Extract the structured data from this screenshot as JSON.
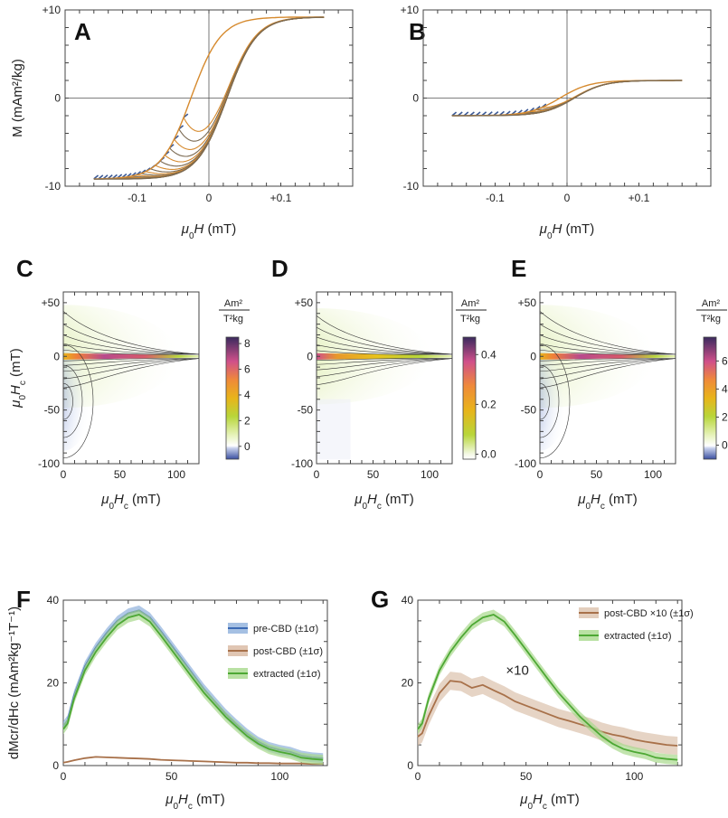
{
  "figure": {
    "panels": {
      "A": "A",
      "B": "B",
      "C": "C",
      "D": "D",
      "E": "E",
      "F": "F",
      "G": "G"
    },
    "hysteresis_x_label": "μ0H (mT)",
    "hysteresis_y_label": "M (mAm²/kg)",
    "forc_x_label": "μ0Hc (mT)",
    "forc_y_label": "μ0Hc (mT)",
    "colorbar_unit_top": "Am²",
    "colorbar_unit_bottom": "T²kg",
    "dist_x_label": "μ0Hc (mT)",
    "dist_y_label": "dMcr/dHc (mAm²kg⁻¹T⁻¹)"
  },
  "chart_data": [
    {
      "id": "A",
      "type": "line",
      "title": "",
      "xlabel": "μ0H (mT)",
      "ylabel": "M (mAm²/kg)",
      "xlim": [
        -0.2,
        0.2
      ],
      "ylim": [
        -10,
        10
      ],
      "xticks": [
        "-0.1",
        "0",
        "+0.1"
      ],
      "yticks": [
        "-10",
        "0",
        "+10"
      ],
      "saturation_M": 9.2,
      "Hmax": 0.16,
      "coercivity_outer": 0.025,
      "num_first_order_curves": 20,
      "colors": {
        "curves": "#7b6a52",
        "ends": "#d68a2e",
        "alt": "#3c5a96"
      }
    },
    {
      "id": "B",
      "type": "line",
      "title": "",
      "xlabel": "μ0H (mT)",
      "ylabel": "",
      "xlim": [
        -0.2,
        0.2
      ],
      "ylim": [
        -10,
        10
      ],
      "xticks": [
        "-0.1",
        "0",
        "+0.1"
      ],
      "yticks": [
        "-10",
        "0",
        "+10"
      ],
      "saturation_M": 2.0,
      "Hmax": 0.16,
      "coercivity_outer": 0.01,
      "num_first_order_curves": 16,
      "colors": {
        "curves": "#7b6a52",
        "ends": "#d68a2e",
        "alt": "#3c5a96"
      }
    },
    {
      "id": "C",
      "type": "heatmap",
      "xlabel": "μ0Hc (mT)",
      "ylabel": "μ0Hc (mT)",
      "xlim": [
        0,
        120
      ],
      "ylim": [
        -100,
        60
      ],
      "xticks": [
        "0",
        "50",
        "100"
      ],
      "yticks": [
        "-100",
        "-50",
        "0",
        "+50"
      ],
      "colorbar_ticks": [
        "0",
        "2",
        "4",
        "6",
        "8"
      ],
      "colorbar_range": [
        -1,
        8.5
      ],
      "negative_lobe": true
    },
    {
      "id": "D",
      "type": "heatmap",
      "xlabel": "μ0Hc (mT)",
      "ylabel": "",
      "xlim": [
        0,
        120
      ],
      "ylim": [
        -100,
        60
      ],
      "xticks": [
        "0",
        "50",
        "100"
      ],
      "yticks": [
        "-100",
        "-50",
        "0",
        "+50"
      ],
      "colorbar_ticks": [
        "0.0",
        "0.2",
        "0.4"
      ],
      "colorbar_range": [
        -0.02,
        0.47
      ],
      "negative_lobe": false
    },
    {
      "id": "E",
      "type": "heatmap",
      "xlabel": "μ0Hc (mT)",
      "ylabel": "",
      "xlim": [
        0,
        120
      ],
      "ylim": [
        -100,
        60
      ],
      "xticks": [
        "0",
        "50",
        "100"
      ],
      "yticks": [
        "-100",
        "-50",
        "0",
        "+50"
      ],
      "colorbar_ticks": [
        "0",
        "2",
        "4",
        "6"
      ],
      "colorbar_range": [
        -1,
        7.7
      ],
      "negative_lobe": true
    },
    {
      "id": "F",
      "type": "line",
      "xlabel": "μ0Hc (mT)",
      "ylabel": "dMcr/dHc (mAm²kg⁻¹T⁻¹)",
      "xlim": [
        0,
        122
      ],
      "ylim": [
        0,
        40
      ],
      "xticks": [
        "0",
        "50",
        "100"
      ],
      "yticks": [
        "0",
        "20",
        "40"
      ],
      "x": [
        0,
        2,
        5,
        10,
        15,
        20,
        25,
        30,
        35,
        40,
        45,
        50,
        55,
        60,
        65,
        70,
        75,
        80,
        85,
        90,
        95,
        100,
        105,
        110,
        115,
        120
      ],
      "series": [
        {
          "name": "pre-CBD (±1σ)",
          "color": "#3c6ab4",
          "band": "#8fb0dc",
          "values": [
            9.5,
            11,
            17,
            24,
            28.5,
            32,
            35,
            36.8,
            37.5,
            35.8,
            32.5,
            29,
            25.5,
            22,
            18.5,
            15.5,
            12.5,
            10,
            7.7,
            5.8,
            4.5,
            3.8,
            3.3,
            2.4,
            2.0,
            1.8
          ],
          "sigma": 1.2
        },
        {
          "name": "post-CBD (±1σ)",
          "color": "#a8714a",
          "band": "#d8b8a0",
          "values": [
            0.7,
            0.9,
            1.3,
            1.8,
            2.1,
            2.0,
            1.9,
            1.8,
            1.7,
            1.6,
            1.4,
            1.3,
            1.2,
            1.1,
            1.0,
            0.9,
            0.8,
            0.7,
            0.7,
            0.6,
            0.6,
            0.5,
            0.5,
            0.5,
            0.4,
            0.4
          ],
          "sigma": 0.15
        },
        {
          "name": "extracted (±1σ)",
          "color": "#4da834",
          "band": "#a8d98c",
          "values": [
            8.8,
            10.2,
            16.2,
            23,
            27.5,
            31,
            34,
            35.8,
            36.5,
            34.8,
            31.5,
            28,
            24.5,
            21,
            17.6,
            14.7,
            11.8,
            9.4,
            7.1,
            5.3,
            4.0,
            3.3,
            2.8,
            1.9,
            1.6,
            1.4
          ],
          "sigma": 1.2
        }
      ]
    },
    {
      "id": "G",
      "type": "line",
      "xlabel": "μ0Hc (mT)",
      "ylabel": "",
      "xlim": [
        0,
        122
      ],
      "ylim": [
        0,
        40
      ],
      "xticks": [
        "0",
        "50",
        "100"
      ],
      "yticks": [
        "0",
        "20",
        "40"
      ],
      "annotation": "×10",
      "x": [
        0,
        2,
        5,
        10,
        15,
        20,
        25,
        30,
        35,
        40,
        45,
        50,
        55,
        60,
        65,
        70,
        75,
        80,
        85,
        90,
        95,
        100,
        105,
        110,
        115,
        120
      ],
      "series": [
        {
          "name": "post-CBD ×10 (±1σ)",
          "color": "#a8714a",
          "band": "#dcc2ac",
          "values": [
            7,
            7.8,
            12,
            17.5,
            20.5,
            20.2,
            18.8,
            19.5,
            18.2,
            17,
            15.5,
            14.5,
            13.5,
            12.5,
            11.5,
            10.8,
            10,
            9.2,
            8.2,
            7.5,
            7.0,
            6.3,
            5.8,
            5.4,
            5.0,
            4.8
          ],
          "sigma": 2.2
        },
        {
          "name": "extracted (±1σ)",
          "color": "#4da834",
          "band": "#a8d98c",
          "values": [
            8.8,
            10.2,
            16.2,
            23,
            27.5,
            31,
            34,
            35.8,
            36.5,
            34.8,
            31.5,
            28,
            24.5,
            21,
            17.6,
            14.7,
            11.8,
            9.4,
            7.1,
            5.3,
            4.0,
            3.3,
            2.8,
            1.9,
            1.6,
            1.4
          ],
          "sigma": 1.2
        }
      ]
    }
  ]
}
